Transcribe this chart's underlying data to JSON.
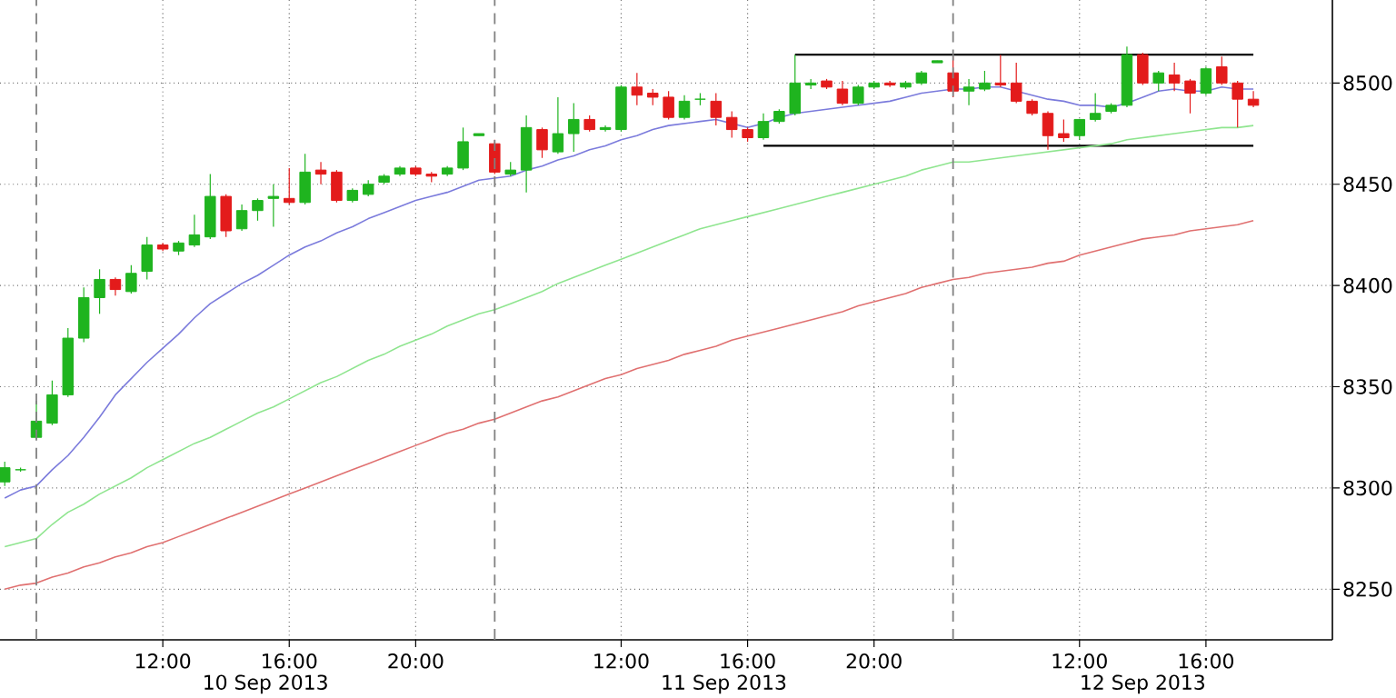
{
  "chart_data": {
    "type": "candlestick",
    "categories": [
      null,
      null,
      null,
      null,
      null,
      null,
      null,
      null,
      null,
      null,
      "12:00",
      null,
      null,
      null,
      null,
      null,
      null,
      null,
      "16:00",
      null,
      null,
      null,
      null,
      null,
      null,
      null,
      "20:00",
      null,
      null,
      null,
      null,
      null,
      null,
      null,
      null,
      null,
      null,
      null,
      null,
      "12:00",
      null,
      null,
      null,
      null,
      null,
      null,
      null,
      "16:00",
      null,
      null,
      null,
      null,
      null,
      null,
      null,
      "20:00",
      null,
      null,
      null,
      null,
      null,
      null,
      null,
      null,
      null,
      null,
      null,
      null,
      "12:00",
      null,
      null,
      null,
      null,
      null,
      null,
      null,
      "16:00",
      null,
      null,
      null
    ],
    "ohlc": [
      [
        8303,
        8313,
        8301,
        8310
      ],
      [
        8309,
        8310,
        8308,
        8309
      ],
      [
        8325,
        8343,
        8324,
        8333
      ],
      [
        8332,
        8353,
        8331,
        8346
      ],
      [
        8346,
        8379,
        8345,
        8374
      ],
      [
        8374,
        8399,
        8372,
        8394
      ],
      [
        8394,
        8408,
        8386,
        8403
      ],
      [
        8403,
        8404,
        8395,
        8398
      ],
      [
        8397,
        8410,
        8396,
        8406
      ],
      [
        8407,
        8424,
        8403,
        8420
      ],
      [
        8420,
        8421,
        8417,
        8418
      ],
      [
        8417,
        8422,
        8415,
        8421
      ],
      [
        8420,
        8435,
        8419,
        8425
      ],
      [
        8424,
        8455,
        8423,
        8444
      ],
      [
        8444,
        8445,
        8424,
        8427
      ],
      [
        8428,
        8440,
        8427,
        8437
      ],
      [
        8437,
        8443,
        8432,
        8442
      ],
      [
        8443,
        8450,
        8429,
        8444
      ],
      [
        8443,
        8458,
        8440,
        8441
      ],
      [
        8441,
        8465,
        8440,
        8456
      ],
      [
        8457,
        8461,
        8450,
        8455
      ],
      [
        8456,
        8457,
        8441,
        8442
      ],
      [
        8442,
        8448,
        8441,
        8447
      ],
      [
        8445,
        8452,
        8444,
        8450
      ],
      [
        8451,
        8455,
        8450,
        8454
      ],
      [
        8455,
        8459,
        8454,
        8458
      ],
      [
        8458,
        8459,
        8454,
        8455
      ],
      [
        8455,
        8456,
        8451,
        8454
      ],
      [
        8455,
        8459,
        8454,
        8458
      ],
      [
        8458,
        8478,
        8457,
        8471
      ],
      [
        8474,
        8475,
        8474,
        8475
      ],
      [
        8470,
        8472,
        8455,
        8456
      ],
      [
        8455,
        8461,
        8454,
        8457
      ],
      [
        8457,
        8484,
        8446,
        8478
      ],
      [
        8477,
        8478,
        8463,
        8467
      ],
      [
        8466,
        8493,
        8465,
        8475
      ],
      [
        8475,
        8490,
        8466,
        8482
      ],
      [
        8482,
        8484,
        8476,
        8477
      ],
      [
        8477,
        8479,
        8476,
        8478
      ],
      [
        8477,
        8499,
        8476,
        8498
      ],
      [
        8498,
        8505,
        8489,
        8494
      ],
      [
        8495,
        8497,
        8489,
        8493
      ],
      [
        8493,
        8496,
        8482,
        8483
      ],
      [
        8483,
        8494,
        8482,
        8491
      ],
      [
        8492,
        8495,
        8489,
        8492
      ],
      [
        8491,
        8495,
        8479,
        8483
      ],
      [
        8483,
        8486,
        8473,
        8477
      ],
      [
        8477,
        8478,
        8471,
        8473
      ],
      [
        8473,
        8485,
        8472,
        8481
      ],
      [
        8481,
        8487,
        8480,
        8486
      ],
      [
        8485,
        8514,
        8484,
        8500
      ],
      [
        8499,
        8502,
        8497,
        8500
      ],
      [
        8501,
        8502,
        8497,
        8498
      ],
      [
        8497,
        8501,
        8489,
        8490
      ],
      [
        8490,
        8499,
        8489,
        8498
      ],
      [
        8498,
        8501,
        8497,
        8500
      ],
      [
        8500,
        8501,
        8498,
        8499
      ],
      [
        8498,
        8501,
        8497,
        8500
      ],
      [
        8500,
        8506,
        8499,
        8505
      ],
      [
        8510,
        8511,
        8510,
        8511
      ],
      [
        8505,
        8513,
        8493,
        8496
      ],
      [
        8496,
        8502,
        8489,
        8498
      ],
      [
        8497,
        8506,
        8496,
        8500
      ],
      [
        8500,
        8514,
        8498,
        8499
      ],
      [
        8500,
        8510,
        8490,
        8491
      ],
      [
        8491,
        8492,
        8484,
        8485
      ],
      [
        8485,
        8486,
        8467,
        8474
      ],
      [
        8475,
        8482,
        8471,
        8473
      ],
      [
        8474,
        8482,
        8472,
        8482
      ],
      [
        8482,
        8495,
        8481,
        8485
      ],
      [
        8486,
        8490,
        8485,
        8489
      ],
      [
        8489,
        8518,
        8488,
        8514
      ],
      [
        8514,
        8515,
        8499,
        8500
      ],
      [
        8500,
        8506,
        8496,
        8505
      ],
      [
        8504,
        8510,
        8496,
        8500
      ],
      [
        8501,
        8502,
        8485,
        8495
      ],
      [
        8495,
        8508,
        8494,
        8507
      ],
      [
        8508,
        8513,
        8499,
        8500
      ],
      [
        8500,
        8501,
        8478,
        8492
      ],
      [
        8492,
        8496,
        8488,
        8489
      ]
    ],
    "colors": [
      "#1fb41f",
      "#1fb41f",
      "#1fb41f",
      "#1fb41f",
      "#1fb41f",
      "#1fb41f",
      "#1fb41f",
      "#e31b1b",
      "#1fb41f",
      "#1fb41f",
      "#e31b1b",
      "#1fb41f",
      "#1fb41f",
      "#1fb41f",
      "#e31b1b",
      "#1fb41f",
      "#1fb41f",
      "#1fb41f",
      "#e31b1b",
      "#1fb41f",
      "#e31b1b",
      "#e31b1b",
      "#1fb41f",
      "#1fb41f",
      "#1fb41f",
      "#1fb41f",
      "#e31b1b",
      "#e31b1b",
      "#1fb41f",
      "#1fb41f",
      "#1fb41f",
      "#e31b1b",
      "#1fb41f",
      "#1fb41f",
      "#e31b1b",
      "#1fb41f",
      "#1fb41f",
      "#e31b1b",
      "#1fb41f",
      "#1fb41f",
      "#e31b1b",
      "#e31b1b",
      "#e31b1b",
      "#1fb41f",
      "#1fb41f",
      "#e31b1b",
      "#e31b1b",
      "#e31b1b",
      "#1fb41f",
      "#1fb41f",
      "#1fb41f",
      "#1fb41f",
      "#e31b1b",
      "#e31b1b",
      "#1fb41f",
      "#1fb41f",
      "#e31b1b",
      "#1fb41f",
      "#1fb41f",
      "#1fb41f",
      "#e31b1b",
      "#1fb41f",
      "#1fb41f",
      "#e31b1b",
      "#e31b1b",
      "#e31b1b",
      "#e31b1b",
      "#e31b1b",
      "#1fb41f",
      "#1fb41f",
      "#1fb41f",
      "#1fb41f",
      "#e31b1b",
      "#1fb41f",
      "#e31b1b",
      "#e31b1b",
      "#1fb41f",
      "#e31b1b",
      "#e31b1b",
      "#e31b1b"
    ],
    "series": [
      {
        "type": "line",
        "color": "#7b7bdc",
        "values": [
          8295,
          8299,
          8301,
          8309,
          8316,
          8325,
          8335,
          8346,
          8354,
          8362,
          8369,
          8376,
          8384,
          8391,
          8396,
          8401,
          8405,
          8410,
          8415,
          8419,
          8422,
          8426,
          8429,
          8433,
          8436,
          8439,
          8442,
          8444,
          8446,
          8449,
          8452,
          8453,
          8454,
          8457,
          8459,
          8462,
          8464,
          8467,
          8469,
          8472,
          8474,
          8477,
          8479,
          8480,
          8481,
          8482,
          8480,
          8478,
          8480,
          8483,
          8485,
          8486,
          8487,
          8488,
          8489,
          8490,
          8491,
          8493,
          8495,
          8496,
          8497,
          8497,
          8498,
          8498,
          8496,
          8494,
          8492,
          8491,
          8489,
          8489,
          8488,
          8490,
          8493,
          8496,
          8497,
          8496,
          8496,
          8498,
          8497,
          8497
        ]
      },
      {
        "type": "line",
        "color": "#8fe58f",
        "values": [
          8271,
          8273,
          8275,
          8282,
          8288,
          8292,
          8297,
          8301,
          8305,
          8310,
          8314,
          8318,
          8322,
          8325,
          8329,
          8333,
          8337,
          8340,
          8344,
          8348,
          8352,
          8355,
          8359,
          8363,
          8366,
          8370,
          8373,
          8376,
          8380,
          8383,
          8386,
          8388,
          8391,
          8394,
          8397,
          8401,
          8404,
          8407,
          8410,
          8413,
          8416,
          8419,
          8422,
          8425,
          8428,
          8430,
          8432,
          8434,
          8436,
          8438,
          8440,
          8442,
          8444,
          8446,
          8448,
          8450,
          8452,
          8454,
          8457,
          8459,
          8461,
          8461,
          8462,
          8463,
          8464,
          8465,
          8466,
          8467,
          8468,
          8469,
          8470,
          8472,
          8473,
          8474,
          8475,
          8476,
          8477,
          8478,
          8478,
          8479
        ]
      },
      {
        "type": "line",
        "color": "#e07070",
        "values": [
          8250,
          8252,
          8253,
          8256,
          8258,
          8261,
          8263,
          8266,
          8268,
          8271,
          8273,
          8276,
          8279,
          8282,
          8285,
          8288,
          8291,
          8294,
          8297,
          8300,
          8303,
          8306,
          8309,
          8312,
          8315,
          8318,
          8321,
          8324,
          8327,
          8329,
          8332,
          8334,
          8337,
          8340,
          8343,
          8345,
          8348,
          8351,
          8354,
          8356,
          8359,
          8361,
          8363,
          8366,
          8368,
          8370,
          8373,
          8375,
          8377,
          8379,
          8381,
          8383,
          8385,
          8387,
          8390,
          8392,
          8394,
          8396,
          8399,
          8401,
          8403,
          8404,
          8406,
          8407,
          8408,
          8409,
          8411,
          8412,
          8415,
          8417,
          8419,
          8421,
          8423,
          8424,
          8425,
          8427,
          8428,
          8429,
          8430,
          8432
        ]
      },
      {
        "type": "line",
        "color": "#000000",
        "values": [
          null,
          null,
          null,
          null,
          null,
          null,
          null,
          null,
          null,
          null,
          null,
          null,
          null,
          null,
          null,
          null,
          null,
          null,
          null,
          null,
          null,
          null,
          null,
          null,
          null,
          null,
          null,
          null,
          null,
          null,
          null,
          null,
          null,
          null,
          null,
          null,
          null,
          null,
          null,
          null,
          null,
          null,
          null,
          null,
          null,
          null,
          null,
          null,
          null,
          null,
          8514,
          8514,
          8514,
          8514,
          8514,
          8514,
          8514,
          8514,
          8514,
          8514,
          8514,
          8514,
          8514,
          8514,
          8514,
          8514,
          8514,
          8514,
          8514,
          8514,
          8514,
          8514,
          8514,
          8514,
          8514,
          8514,
          8514,
          8514,
          8514,
          8514
        ]
      },
      {
        "type": "line",
        "color": "#000000",
        "values": [
          null,
          null,
          null,
          null,
          null,
          null,
          null,
          null,
          null,
          null,
          null,
          null,
          null,
          null,
          null,
          null,
          null,
          null,
          null,
          null,
          null,
          null,
          null,
          null,
          null,
          null,
          null,
          null,
          null,
          null,
          null,
          null,
          null,
          null,
          null,
          null,
          null,
          null,
          null,
          null,
          null,
          null,
          null,
          null,
          null,
          null,
          null,
          null,
          8469,
          8469,
          8469,
          8469,
          8469,
          8469,
          8469,
          8469,
          8469,
          8469,
          8469,
          8469,
          8469,
          8469,
          8469,
          8469,
          8469,
          8469,
          8469,
          8469,
          8469,
          8469,
          8469,
          8469,
          8469,
          8469,
          8469,
          8469,
          8469,
          8469,
          8469,
          8469
        ]
      }
    ],
    "ylim": [
      8225,
      8541
    ],
    "yticks": [
      8250,
      8300,
      8350,
      8400,
      8450,
      8500
    ],
    "grid": true,
    "annotations": [
      "10 Sep 2013",
      "11 Sep 2013",
      "12 Sep 2013"
    ]
  }
}
